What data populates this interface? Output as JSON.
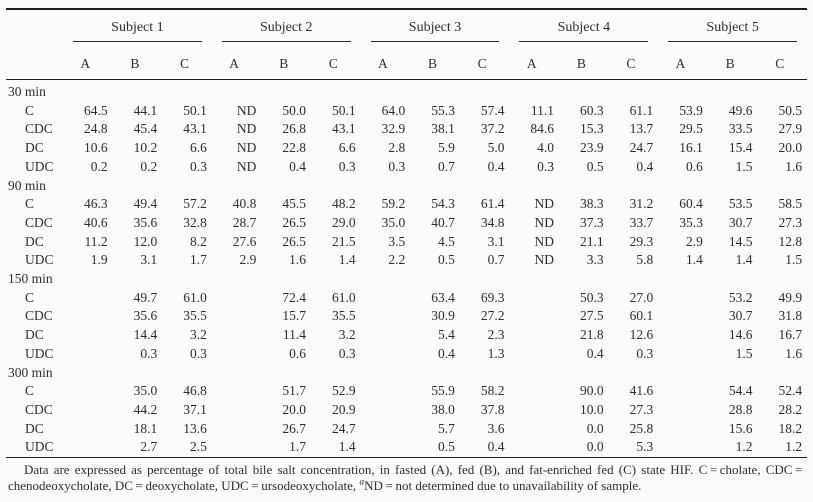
{
  "page": {
    "background_color": "#fbfbf9",
    "text_color": "#2e2e2e",
    "rule_color": "#1e1e1e"
  },
  "table": {
    "subjects": [
      "Subject 1",
      "Subject 2",
      "Subject 3",
      "Subject 4",
      "Subject 5"
    ],
    "sub_columns": [
      "A",
      "B",
      "C"
    ],
    "groups": [
      {
        "label": "30 min",
        "rows": [
          {
            "label": "C",
            "values": [
              "64.5",
              "44.1",
              "50.1",
              "ND",
              "50.0",
              "50.1",
              "64.0",
              "55.3",
              "57.4",
              "11.1",
              "60.3",
              "61.1",
              "53.9",
              "49.6",
              "50.5"
            ]
          },
          {
            "label": "CDC",
            "values": [
              "24.8",
              "45.4",
              "43.1",
              "ND",
              "26.8",
              "43.1",
              "32.9",
              "38.1",
              "37.2",
              "84.6",
              "15.3",
              "13.7",
              "29.5",
              "33.5",
              "27.9"
            ]
          },
          {
            "label": "DC",
            "values": [
              "10.6",
              "10.2",
              "6.6",
              "ND",
              "22.8",
              "6.6",
              "2.8",
              "5.9",
              "5.0",
              "4.0",
              "23.9",
              "24.7",
              "16.1",
              "15.4",
              "20.0"
            ]
          },
          {
            "label": "UDC",
            "values": [
              "0.2",
              "0.2",
              "0.3",
              "ND",
              "0.4",
              "0.3",
              "0.3",
              "0.7",
              "0.4",
              "0.3",
              "0.5",
              "0.4",
              "0.6",
              "1.5",
              "1.6"
            ]
          }
        ]
      },
      {
        "label": "90 min",
        "rows": [
          {
            "label": "C",
            "values": [
              "46.3",
              "49.4",
              "57.2",
              "40.8",
              "45.5",
              "48.2",
              "59.2",
              "54.3",
              "61.4",
              "ND",
              "38.3",
              "31.2",
              "60.4",
              "53.5",
              "58.5"
            ]
          },
          {
            "label": "CDC",
            "values": [
              "40.6",
              "35.6",
              "32.8",
              "28.7",
              "26.5",
              "29.0",
              "35.0",
              "40.7",
              "34.8",
              "ND",
              "37.3",
              "33.7",
              "35.3",
              "30.7",
              "27.3"
            ]
          },
          {
            "label": "DC",
            "values": [
              "11.2",
              "12.0",
              "8.2",
              "27.6",
              "26.5",
              "21.5",
              "3.5",
              "4.5",
              "3.1",
              "ND",
              "21.1",
              "29.3",
              "2.9",
              "14.5",
              "12.8"
            ]
          },
          {
            "label": "UDC",
            "values": [
              "1.9",
              "3.1",
              "1.7",
              "2.9",
              "1.6",
              "1.4",
              "2.2",
              "0.5",
              "0.7",
              "ND",
              "3.3",
              "5.8",
              "1.4",
              "1.4",
              "1.5"
            ]
          }
        ]
      },
      {
        "label": "150 min",
        "rows": [
          {
            "label": "C",
            "values": [
              "",
              "49.7",
              "61.0",
              "",
              "72.4",
              "61.0",
              "",
              "63.4",
              "69.3",
              "",
              "50.3",
              "27.0",
              "",
              "53.2",
              "49.9"
            ]
          },
          {
            "label": "CDC",
            "values": [
              "",
              "35.6",
              "35.5",
              "",
              "15.7",
              "35.5",
              "",
              "30.9",
              "27.2",
              "",
              "27.5",
              "60.1",
              "",
              "30.7",
              "31.8"
            ]
          },
          {
            "label": "DC",
            "values": [
              "",
              "14.4",
              "3.2",
              "",
              "11.4",
              "3.2",
              "",
              "5.4",
              "2.3",
              "",
              "21.8",
              "12.6",
              "",
              "14.6",
              "16.7"
            ]
          },
          {
            "label": "UDC",
            "values": [
              "",
              "0.3",
              "0.3",
              "",
              "0.6",
              "0.3",
              "",
              "0.4",
              "1.3",
              "",
              "0.4",
              "0.3",
              "",
              "1.5",
              "1.6"
            ]
          }
        ]
      },
      {
        "label": "300 min",
        "rows": [
          {
            "label": "C",
            "values": [
              "",
              "35.0",
              "46.8",
              "",
              "51.7",
              "52.9",
              "",
              "55.9",
              "58.2",
              "",
              "90.0",
              "41.6",
              "",
              "54.4",
              "52.4"
            ]
          },
          {
            "label": "CDC",
            "values": [
              "",
              "44.2",
              "37.1",
              "",
              "20.0",
              "20.9",
              "",
              "38.0",
              "37.8",
              "",
              "10.0",
              "27.3",
              "",
              "28.8",
              "28.2"
            ]
          },
          {
            "label": "DC",
            "values": [
              "",
              "18.1",
              "13.6",
              "",
              "26.7",
              "24.7",
              "",
              "5.7",
              "3.6",
              "",
              "0.0",
              "25.8",
              "",
              "15.6",
              "18.2"
            ]
          },
          {
            "label": "UDC",
            "values": [
              "",
              "2.7",
              "2.5",
              "",
              "1.7",
              "1.4",
              "",
              "0.5",
              "0.4",
              "",
              "0.0",
              "5.3",
              "",
              "1.2",
              "1.2"
            ]
          }
        ]
      }
    ]
  },
  "footnote": {
    "text_before_sup": "Data are expressed as percentage of total bile salt concentration, in fasted (A), fed (B), and fat-enriched fed (C) state HIF. C = cholate, CDC = chenodeoxycholate, DC = deoxycholate, UDC = ursodeoxycholate, ",
    "sup": "a",
    "text_after_sup": "ND = not determined due to unavailability of sample."
  }
}
